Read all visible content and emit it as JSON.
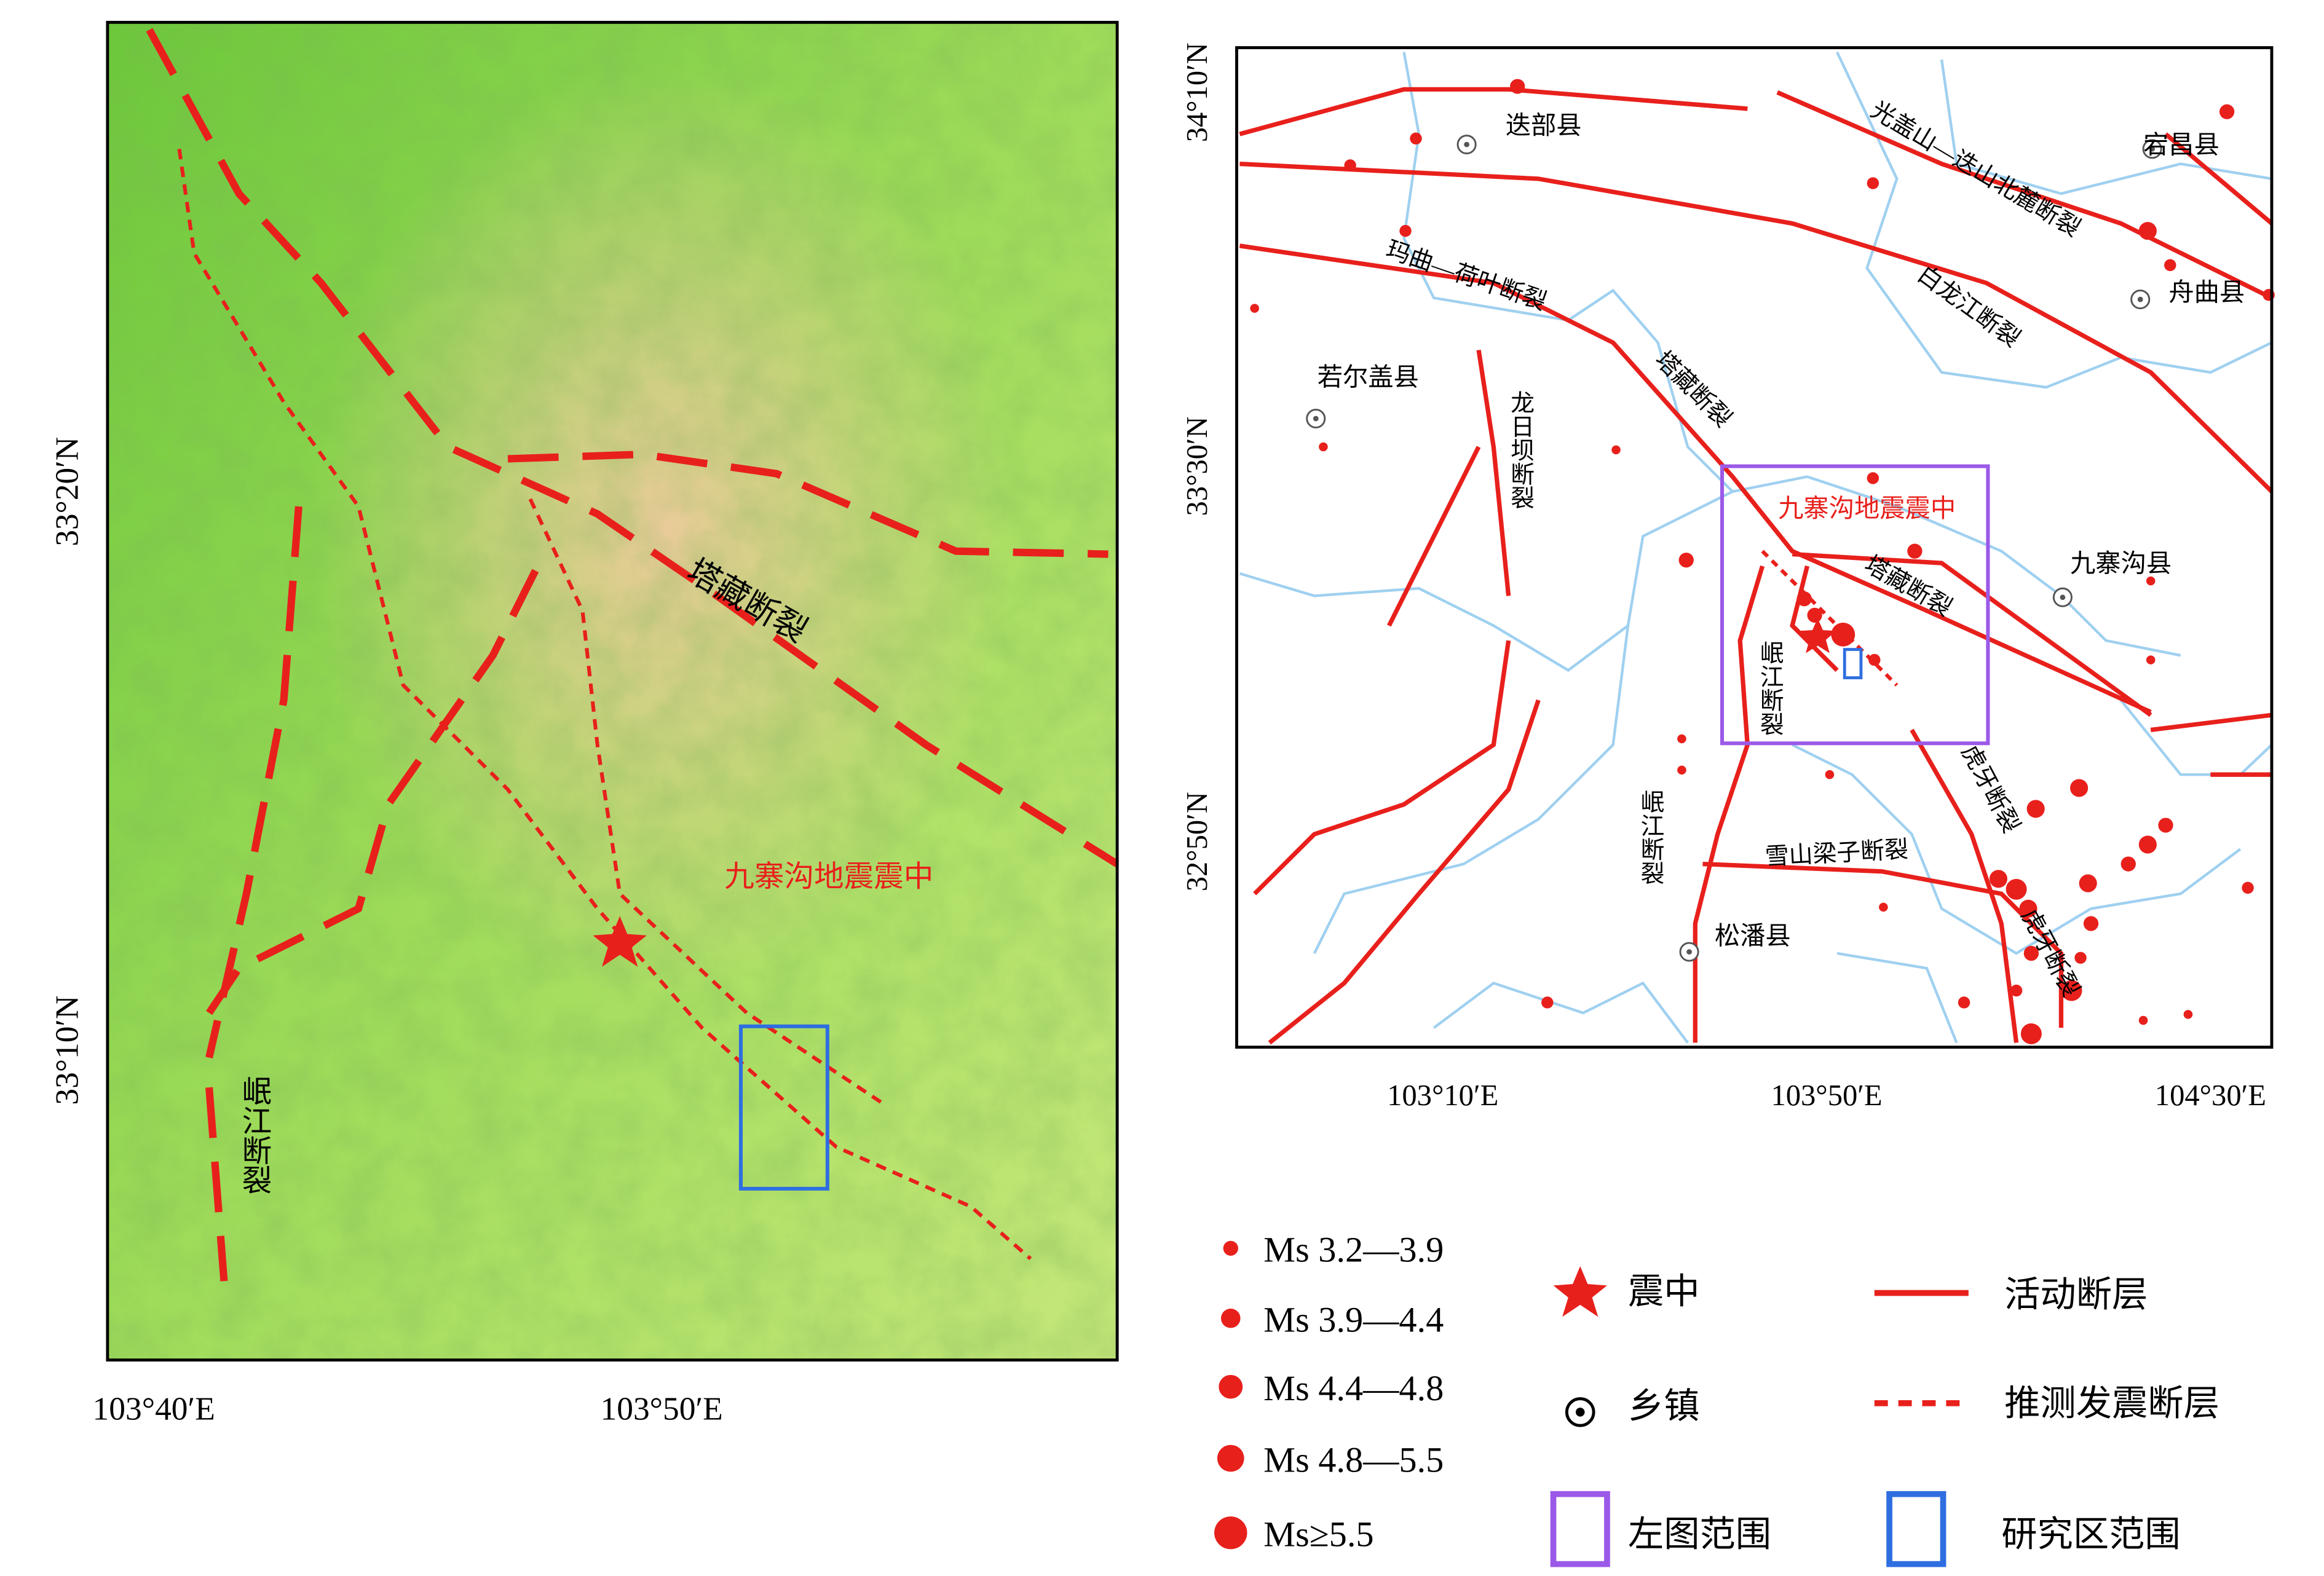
{
  "left_map": {
    "lat_labels": [
      "33°20′N",
      "33°10′N"
    ],
    "lon_labels": [
      "103°40′E",
      "103°50′E"
    ],
    "fault_tazang": "塔藏断裂",
    "epicenter": "九寨沟地震震中",
    "fault_minjiang": "岷江断裂"
  },
  "right_map": {
    "lat_labels": [
      "34°10′N",
      "33°30′N",
      "32°50′N"
    ],
    "lon_labels": [
      "103°10′E",
      "103°50′E",
      "104°30′E"
    ],
    "places": [
      "迭部县",
      "宕昌县",
      "舟曲县",
      "若尔盖县",
      "九寨沟县",
      "松潘县"
    ],
    "faults": [
      "光盖山—迭山北麓断裂",
      "玛曲—荷叶断裂",
      "白龙江断裂",
      "塔藏断裂",
      "龙日坝断裂",
      "塔藏断裂",
      "岷江断裂",
      "虎牙断裂",
      "岷江断裂",
      "雪山梁子断裂",
      "虎牙断裂"
    ],
    "epicenter": "九寨沟地震震中"
  },
  "legend": {
    "magnitudes": [
      "Ms 3.2—3.9",
      "Ms 3.9—4.4",
      "Ms 4.4—4.8",
      "Ms 4.8—5.5",
      "Ms≥5.5"
    ],
    "items": [
      "震中",
      "乡镇",
      "左图范围",
      "活动断层",
      "推测发震断层",
      "研究区范围"
    ]
  }
}
